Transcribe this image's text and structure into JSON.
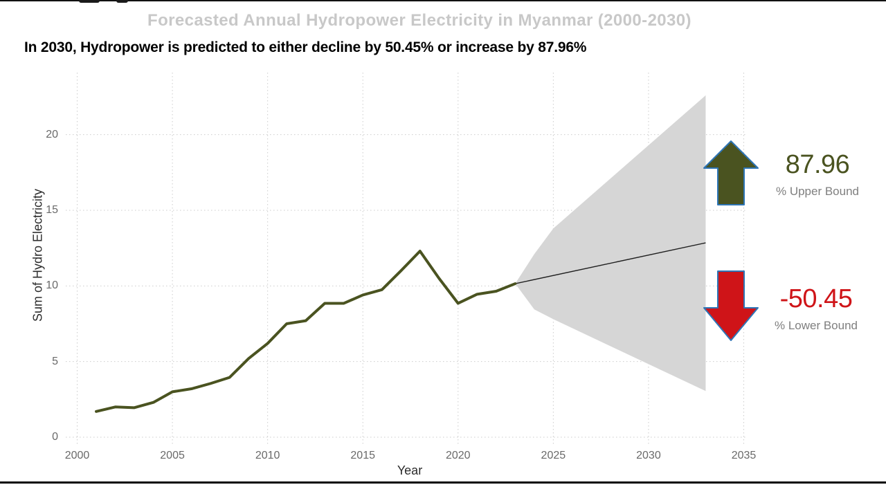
{
  "page": {
    "title": "Forecasted Annual Hydropower Electricity in Myanmar (2000-2030)",
    "subtitle": "In 2030, Hydropower is predicted to either decline by 50.45% or increase by 87.96%"
  },
  "annotations": {
    "upper": {
      "value": "87.96",
      "label": "% Upper Bound"
    },
    "lower": {
      "value": "-50.45",
      "label": "% Lower Bound"
    }
  },
  "colors": {
    "line": "#4a5320",
    "forecast_band": "#d6d6d6",
    "forecast_median": "#1f1f1f",
    "upper_accent": "#4a5320",
    "lower_accent": "#cf1418",
    "arrow_outline": "#2e75b6",
    "title_gray": "#c8c8c8",
    "tick_gray": "#696969",
    "bound_label_gray": "#7f7f7f",
    "grid": "#cbcbcb"
  },
  "chart_data": {
    "type": "line",
    "title": "Forecasted Annual Hydropower Electricity in Myanmar (2000-2030)",
    "subtitle": "In 2030, Hydropower is predicted to either decline by 50.45% or increase by 87.96%",
    "xlabel": "Year",
    "ylabel": "Sum of Hydro Electricity",
    "x_ticks": [
      2000,
      2005,
      2010,
      2015,
      2020,
      2025,
      2030,
      2035
    ],
    "y_ticks": [
      0,
      5,
      10,
      15,
      20
    ],
    "xlim": [
      1999.4,
      2035.2
    ],
    "ylim": [
      0,
      24.1
    ],
    "grid": "dotted",
    "legend": "none",
    "series": [
      {
        "name": "actual-hydro-electricity",
        "x": [
          2001,
          2002,
          2003,
          2004,
          2005,
          2006,
          2007,
          2008,
          2009,
          2010,
          2011,
          2012,
          2013,
          2014,
          2015,
          2016,
          2017,
          2018,
          2019,
          2020,
          2021,
          2022,
          2023
        ],
        "y": [
          1.7,
          2.0,
          1.95,
          2.3,
          3.0,
          3.2,
          3.55,
          3.95,
          5.2,
          6.2,
          7.5,
          7.7,
          8.85,
          8.85,
          9.4,
          9.75,
          11.0,
          12.3,
          10.5,
          8.85,
          9.45,
          9.65,
          10.15
        ]
      },
      {
        "name": "forecast-median",
        "x": [
          2023,
          2033
        ],
        "y": [
          10.15,
          12.85
        ]
      }
    ],
    "band": {
      "name": "forecast-confidence-range",
      "x": [
        2023,
        2024,
        2025,
        2033
      ],
      "upper": [
        10.15,
        12.1,
        13.8,
        22.6
      ],
      "lower": [
        10.15,
        8.45,
        7.8,
        3.05
      ]
    }
  }
}
